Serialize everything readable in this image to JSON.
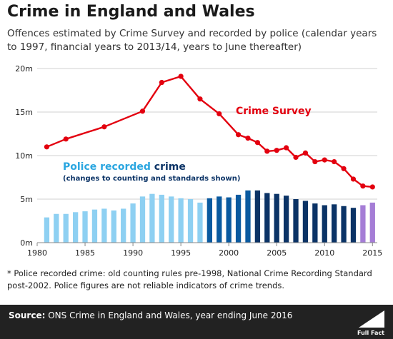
{
  "header": {
    "title": "Crime in England and Wales",
    "subtitle": "Offences estimated by Crime Survey and recorded by police (calendar years to 1997, financial years to 2013/14, years to June thereafter)"
  },
  "footnote": "* Police recorded crime: old counting rules pre-1998, National Crime Recording Standard post-2002. Police figures are not reliable indicators of crime trends.",
  "source": {
    "label": "Source:",
    "text": "ONS Crime in England and Wales, year ending June 2016"
  },
  "logo": {
    "text": "Full Fact"
  },
  "colors": {
    "survey": "#e3000f",
    "police_old": "#8ed0f2",
    "police_mid": "#0a5aa0",
    "police_ncrs": "#0b3366",
    "police_latest": "#a57dd6",
    "police_label": "#2aa6e0"
  },
  "chart_data": {
    "type": "bar",
    "yticks": [
      "0m",
      "5m",
      "10m",
      "15m",
      "20m"
    ],
    "xticks": [
      "1980",
      "1985",
      "1990",
      "1995",
      "2000",
      "2005",
      "2010",
      "2015"
    ],
    "ylim": [
      0,
      20
    ],
    "xlim": [
      1980,
      2015.5
    ],
    "grid": true,
    "annotations": {
      "survey_label": "Crime Survey",
      "police_label_part1": "Police recorded",
      "police_label_part2": " crime",
      "police_note": "(changes to counting and standards shown)"
    },
    "series": [
      {
        "name": "Crime Survey",
        "type": "line",
        "x": [
          1981,
          1983,
          1987,
          1991,
          1993,
          1995,
          1997,
          1999,
          2001,
          2002,
          2003,
          2004,
          2005,
          2006,
          2007,
          2008,
          2009,
          2010,
          2011,
          2012,
          2013,
          2014,
          2015
        ],
        "values": [
          11.0,
          11.9,
          13.3,
          15.1,
          18.4,
          19.1,
          16.5,
          14.8,
          12.4,
          12.0,
          11.5,
          10.5,
          10.6,
          10.9,
          9.8,
          10.3,
          9.3,
          9.5,
          9.3,
          8.5,
          7.3,
          6.5,
          6.4
        ]
      },
      {
        "name": "Police recorded crime",
        "type": "bar",
        "x": [
          1981,
          1982,
          1983,
          1984,
          1985,
          1986,
          1987,
          1988,
          1989,
          1990,
          1991,
          1992,
          1993,
          1994,
          1995,
          1996,
          1997,
          1998,
          1999,
          2000,
          2001,
          2002,
          2003,
          2004,
          2005,
          2006,
          2007,
          2008,
          2009,
          2010,
          2011,
          2012,
          2013,
          2014,
          2015
        ],
        "values": [
          2.9,
          3.3,
          3.3,
          3.5,
          3.6,
          3.8,
          3.9,
          3.7,
          3.9,
          4.5,
          5.3,
          5.6,
          5.5,
          5.3,
          5.1,
          5.0,
          4.6,
          5.1,
          5.3,
          5.2,
          5.5,
          6.0,
          6.0,
          5.7,
          5.6,
          5.4,
          5.0,
          4.8,
          4.5,
          4.3,
          4.4,
          4.2,
          4.0,
          4.3,
          4.6
        ]
      }
    ]
  }
}
